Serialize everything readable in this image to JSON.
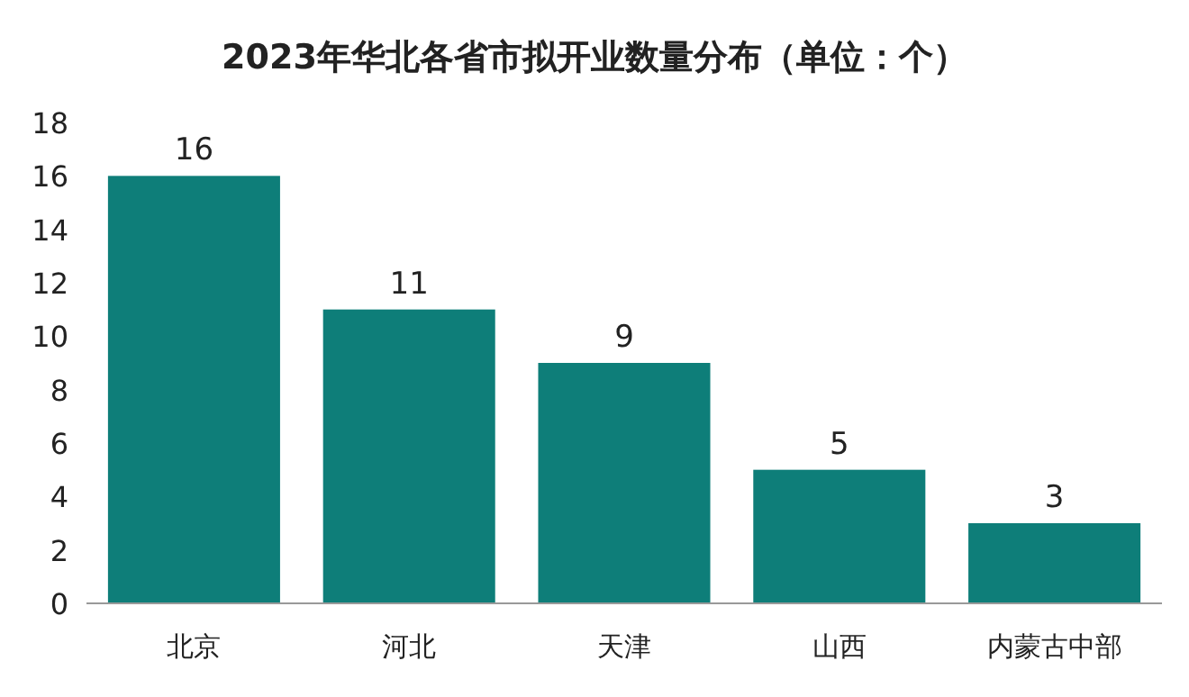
{
  "chart_data": {
    "type": "bar",
    "title": "2023年华北各省市拟开业数量分布（单位：个）",
    "categories": [
      "北京",
      "河北",
      "天津",
      "山西",
      "内蒙古中部"
    ],
    "values": [
      16,
      11,
      9,
      5,
      3
    ],
    "color": "#0e7e79",
    "ylim": [
      0,
      18
    ],
    "yticks": [
      0,
      2,
      4,
      6,
      8,
      10,
      12,
      14,
      16,
      18
    ],
    "grid": false,
    "data_labels": true
  }
}
